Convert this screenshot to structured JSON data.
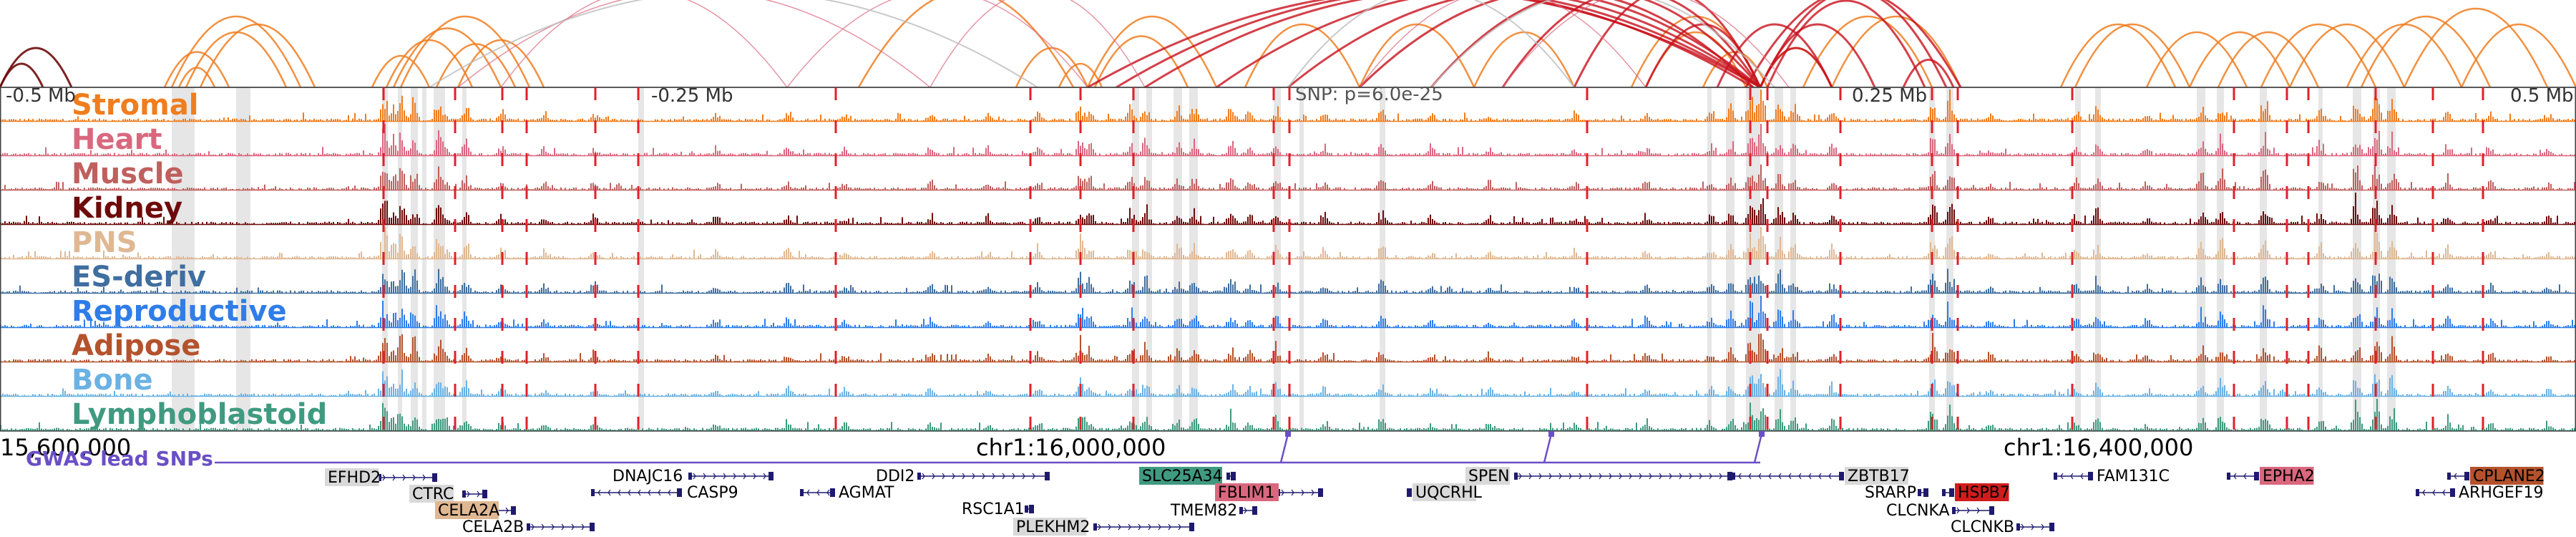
{
  "view": {
    "position_labels": [
      "-0.5 Mb",
      "-0.25 Mb",
      "0.25 Mb",
      "0.5 Mb"
    ],
    "snp_label": "SNP: p=6.0e-25",
    "coordinates": [
      "15,600,000",
      "chr1:16,000,000",
      "chr1:16,400,000"
    ],
    "gwas_label": "GWAS lead SNPs"
  },
  "colors": {
    "highlight": "#e6e6e6",
    "boundary": "#e0202a",
    "gwas": "#6a4fc6",
    "gene_dark": "#1f1a6e"
  },
  "tracks": [
    {
      "id": "stromal",
      "label": "Stromal",
      "color": "#f07d1e"
    },
    {
      "id": "heart",
      "label": "Heart",
      "color": "#d9687e"
    },
    {
      "id": "muscle",
      "label": "Muscle",
      "color": "#c0605e"
    },
    {
      "id": "kidney",
      "label": "Kidney",
      "color": "#6e0b0b"
    },
    {
      "id": "pns",
      "label": "PNS",
      "color": "#dfb893"
    },
    {
      "id": "es-deriv",
      "label": "ES-deriv",
      "color": "#3f6ea0"
    },
    {
      "id": "reproductive",
      "label": "Reproductive",
      "color": "#2f7de8"
    },
    {
      "id": "adipose",
      "label": "Adipose",
      "color": "#b4522c"
    },
    {
      "id": "bone",
      "label": "Bone",
      "color": "#6bb2e4"
    },
    {
      "id": "lymphoblastoid",
      "label": "Lymphoblastoid",
      "color": "#3f9a80"
    }
  ],
  "genes": [
    {
      "name": "EFHD2",
      "tag_color": "#d9d9d9",
      "text_color": "#000000"
    },
    {
      "name": "CTRC",
      "tag_color": "#d9d9d9",
      "text_color": "#000000"
    },
    {
      "name": "CELA2A",
      "tag_color": "#dfb893",
      "text_color": "#ffffff"
    },
    {
      "name": "CELA2B",
      "tag_color": "",
      "text_color": "#000000"
    },
    {
      "name": "DNAJC16",
      "tag_color": "",
      "text_color": "#000000"
    },
    {
      "name": "CASP9",
      "tag_color": "",
      "text_color": "#000000"
    },
    {
      "name": "AGMAT",
      "tag_color": "",
      "text_color": "#000000"
    },
    {
      "name": "DDI2",
      "tag_color": "",
      "text_color": "#000000"
    },
    {
      "name": "RSC1A1",
      "tag_color": "",
      "text_color": "#000000"
    },
    {
      "name": "PLEKHM2",
      "tag_color": "#d9d9d9",
      "text_color": "#000000"
    },
    {
      "name": "SLC25A34",
      "tag_color": "#3f9a80",
      "text_color": "#ffffff"
    },
    {
      "name": "FBLIM1",
      "tag_color": "#d9687e",
      "text_color": "#ffffff"
    },
    {
      "name": "TMEM82",
      "tag_color": "",
      "text_color": "#000000"
    },
    {
      "name": "UQCRHL",
      "tag_color": "#d9d9d9",
      "text_color": "#000000"
    },
    {
      "name": "SPEN",
      "tag_color": "#d9d9d9",
      "text_color": "#000000"
    },
    {
      "name": "ZBTB17",
      "tag_color": "#d9d9d9",
      "text_color": "#000000"
    },
    {
      "name": "SRARP",
      "tag_color": "",
      "text_color": "#000000"
    },
    {
      "name": "HSPB7",
      "tag_color": "#d01c1c",
      "text_color": "#ffffff"
    },
    {
      "name": "CLCNKA",
      "tag_color": "",
      "text_color": "#000000"
    },
    {
      "name": "CLCNKB",
      "tag_color": "",
      "text_color": "#000000"
    },
    {
      "name": "FAM131C",
      "tag_color": "",
      "text_color": "#000000"
    },
    {
      "name": "EPHA2",
      "tag_color": "#d9687e",
      "text_color": "#ffffff"
    },
    {
      "name": "ARHGEF19",
      "tag_color": "",
      "text_color": "#000000"
    },
    {
      "name": "CPLANE2",
      "tag_color": "#b4522c",
      "text_color": "#ffffff"
    }
  ]
}
